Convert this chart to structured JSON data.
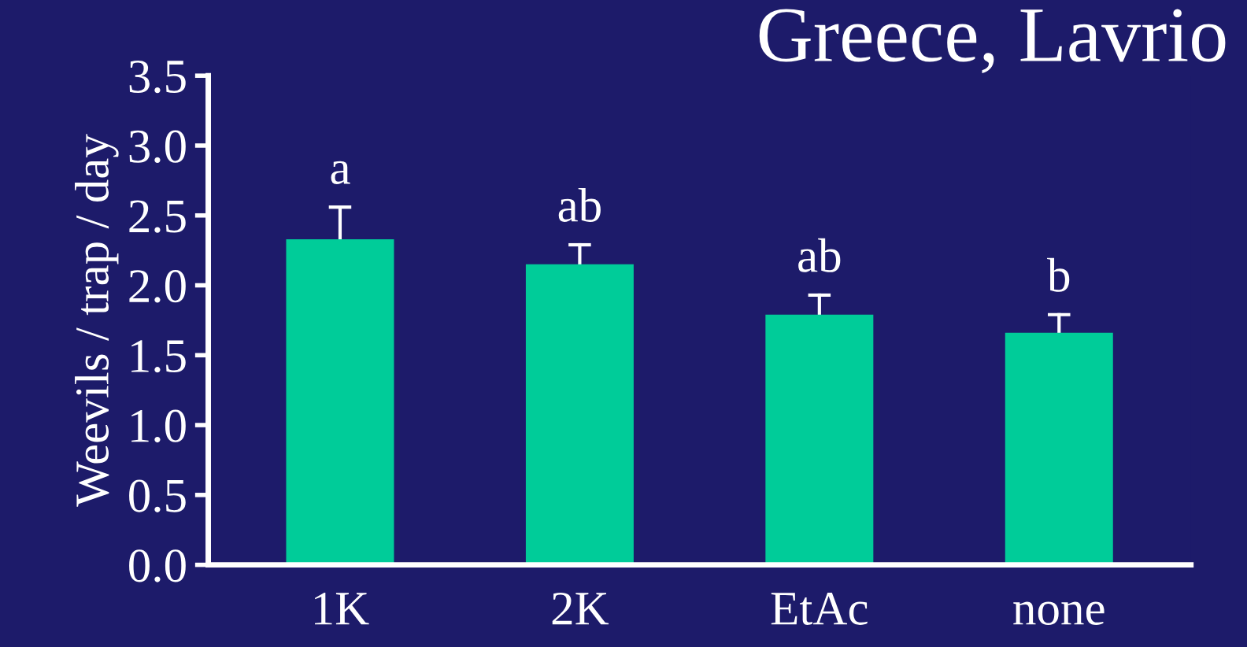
{
  "chart_data": {
    "type": "bar",
    "title": "Greece, Lavrio",
    "ylabel": "Weevils / trap / day",
    "categories": [
      "1K",
      "2K",
      "EtAc",
      "none"
    ],
    "values": [
      2.33,
      2.15,
      1.79,
      1.66
    ],
    "errors": [
      [
        2.33,
        2.56
      ],
      [
        2.15,
        2.29
      ],
      [
        1.79,
        1.93
      ],
      [
        1.66,
        1.79
      ]
    ],
    "color": "#00cc99",
    "ylim": [
      0,
      3.5
    ],
    "yticks": [
      {
        "value": 0,
        "label": "0.0"
      },
      {
        "value": 0.5,
        "label": "0.5"
      },
      {
        "value": 1,
        "label": "1.0"
      },
      {
        "value": 1.5,
        "label": "1.5"
      },
      {
        "value": 2,
        "label": "2.0"
      },
      {
        "value": 2.5,
        "label": "2.5"
      },
      {
        "value": 3,
        "label": "3.0"
      },
      {
        "value": 3.5,
        "label": "3.5"
      }
    ],
    "annotations": [
      {
        "text": "a",
        "x": "1K",
        "y": 2.56
      },
      {
        "text": "ab",
        "x": "2K",
        "y": 2.29
      },
      {
        "text": "ab",
        "x": "EtAc",
        "y": 1.93
      },
      {
        "text": "b",
        "x": "none",
        "y": 1.79
      }
    ],
    "grid": false,
    "legend": false
  }
}
